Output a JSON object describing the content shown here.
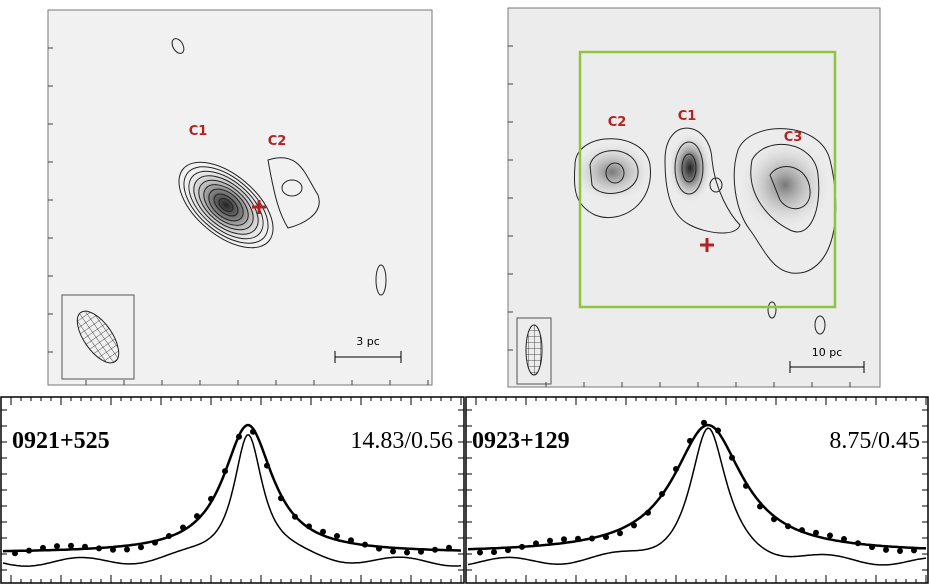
{
  "maps": [
    {
      "labels": [
        "C1",
        "C2"
      ],
      "scale_bar": "3 pc"
    },
    {
      "labels": [
        "C2",
        "C1",
        "C3"
      ],
      "scale_bar": "10 pc"
    }
  ],
  "spectra": [
    {
      "source": "0921+525",
      "ratio": "14.83/0.56"
    },
    {
      "source": "0923+129",
      "ratio": "8.75/0.45"
    }
  ]
}
